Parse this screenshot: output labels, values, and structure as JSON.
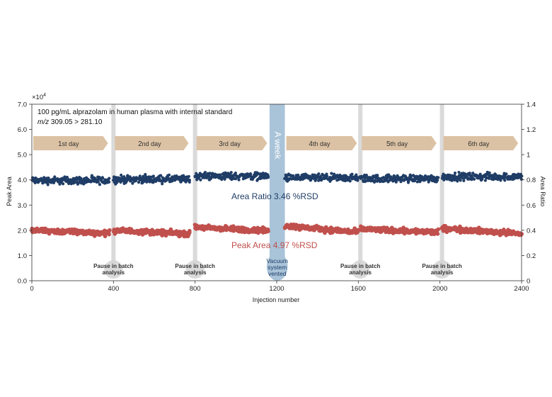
{
  "chart_data": {
    "type": "scatter",
    "title": "100 pg/mL alprazolam in human plasma with internal standard",
    "subtitle_italic": "m/z",
    "subtitle_rest": " 309.05 > 281.10",
    "xlabel": "Injection number",
    "ylabel_left": "Peak Area",
    "ylabel_right": "Area Ratio",
    "left_exponent_base": "×10",
    "left_exponent_power": "4",
    "xlim": [
      0,
      2400
    ],
    "ylim_left": [
      0,
      7.0
    ],
    "ylim_right": [
      0,
      1.4
    ],
    "x_ticks": [
      "0",
      "400",
      "800",
      "1200",
      "1600",
      "2000",
      "2400"
    ],
    "x_tick_values": [
      0,
      400,
      800,
      1200,
      1600,
      2000,
      2400
    ],
    "y_left_ticks": [
      "0.0",
      "1.0",
      "2.0",
      "3.0",
      "4.0",
      "5.0",
      "6.0",
      "7.0"
    ],
    "y_left_tick_values": [
      0,
      1,
      2,
      3,
      4,
      5,
      6,
      7
    ],
    "y_right_ticks": [
      "0",
      "0.2",
      "0.4",
      "0.6",
      "0.8",
      "1",
      "1.2",
      "1.4"
    ],
    "y_right_tick_values": [
      0,
      0.2,
      0.4,
      0.6,
      0.8,
      1.0,
      1.2,
      1.4
    ],
    "days": [
      {
        "num": "1",
        "suffix": "st day",
        "start": 0,
        "end": 380
      },
      {
        "num": "2",
        "suffix": "nd day",
        "start": 400,
        "end": 775
      },
      {
        "num": "3",
        "suffix": "rd day",
        "start": 800,
        "end": 1160
      },
      {
        "num": "4",
        "suffix": "th day",
        "start": 1240,
        "end": 1600
      },
      {
        "num": "5",
        "suffix": "th day",
        "start": 1610,
        "end": 1990
      },
      {
        "num": "6",
        "suffix": "th day",
        "start": 2010,
        "end": 2390
      }
    ],
    "pauses": [
      {
        "x": 400,
        "line1": "Pause in batch",
        "line2": "analysis"
      },
      {
        "x": 800,
        "line1": "Pause in batch",
        "line2": "analysis"
      },
      {
        "x": 1610,
        "line1": "Pause in batch",
        "line2": "analysis"
      },
      {
        "x": 2010,
        "line1": "Pause in batch",
        "line2": "analysis"
      }
    ],
    "week_break": {
      "x_start": 1165,
      "x_end": 1240,
      "label": "A week",
      "vent_line1": "Vacuum",
      "vent_line2": "system",
      "vent_line3": "vented"
    },
    "series": [
      {
        "name": "Area Ratio",
        "label": "Area Ratio 3.46 %RSD",
        "axis": "right",
        "color": "#1f3d66",
        "segments": [
          {
            "start": 0,
            "end": 380,
            "mean": 0.795,
            "spread": 0.025
          },
          {
            "start": 400,
            "end": 775,
            "mean": 0.805,
            "spread": 0.025
          },
          {
            "start": 800,
            "end": 1160,
            "mean": 0.83,
            "spread": 0.025
          },
          {
            "start": 1240,
            "end": 1600,
            "mean": 0.815,
            "spread": 0.025
          },
          {
            "start": 1610,
            "end": 1990,
            "mean": 0.81,
            "spread": 0.025
          },
          {
            "start": 2010,
            "end": 2400,
            "mean": 0.825,
            "spread": 0.025
          }
        ]
      },
      {
        "name": "Peak Area",
        "label": "Peak Area 4.97 %RSD",
        "axis": "left",
        "color": "#c0504d",
        "segments": [
          {
            "start": 0,
            "end": 380,
            "mean_start": 2.0,
            "mean_end": 1.88,
            "spread": 0.09
          },
          {
            "start": 400,
            "end": 775,
            "mean_start": 2.0,
            "mean_end": 1.86,
            "spread": 0.09
          },
          {
            "start": 800,
            "end": 1160,
            "mean_start": 2.12,
            "mean_end": 1.98,
            "spread": 0.09
          },
          {
            "start": 1240,
            "end": 1600,
            "mean_start": 2.18,
            "mean_end": 1.92,
            "spread": 0.09
          },
          {
            "start": 1610,
            "end": 1990,
            "mean_start": 2.05,
            "mean_end": 1.92,
            "spread": 0.09
          },
          {
            "start": 2010,
            "end": 2400,
            "mean_start": 2.08,
            "mean_end": 1.86,
            "spread": 0.09
          }
        ]
      }
    ],
    "colors": {
      "arrow": "#dcc2a4",
      "week_band": "#a9c3d9",
      "pause_band": "#d4d4d4"
    }
  }
}
